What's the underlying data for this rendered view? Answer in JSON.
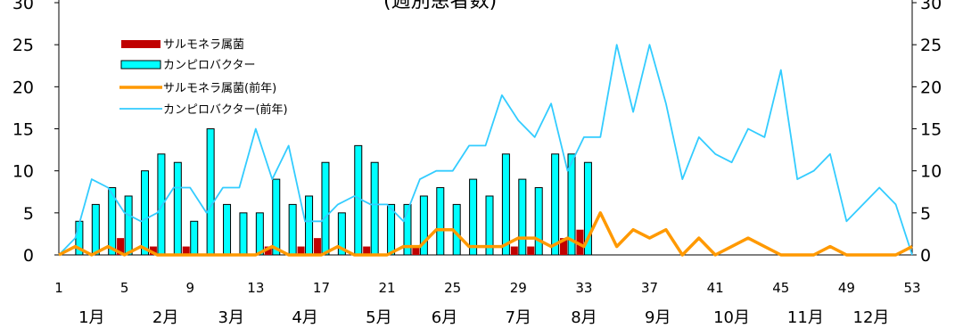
{
  "chart_data": {
    "type": "bar",
    "title": "カンピロバクター(週別患者数)",
    "title_visible_part": "(週別患者数)",
    "ylim": [
      0,
      30
    ],
    "y_ticks": [
      0,
      5,
      10,
      15,
      20,
      25,
      30
    ],
    "x_range": [
      1,
      53
    ],
    "week_ticks": [
      1,
      5,
      9,
      13,
      17,
      21,
      25,
      29,
      33,
      37,
      41,
      45,
      49,
      53
    ],
    "month_labels": [
      "1月",
      "2月",
      "3月",
      "4月",
      "5月",
      "6月",
      "7月",
      "8月",
      "9月",
      "10月",
      "11月",
      "12月"
    ],
    "month_label_weeks": [
      3,
      7.5,
      11.5,
      16,
      20.5,
      24.5,
      29,
      33,
      37.5,
      42,
      46.5,
      50.5
    ],
    "series": [
      {
        "name": "サルモネラ属菌",
        "kind": "bar",
        "color": "#c00000",
        "x": [
          5,
          7,
          9,
          14,
          16,
          17,
          20,
          23,
          29,
          30,
          32,
          33
        ],
        "values": [
          2,
          1,
          1,
          1,
          1,
          2,
          1,
          1,
          1,
          1,
          2,
          3
        ]
      },
      {
        "name": "カンピロバクター",
        "kind": "bar",
        "color": "#00ffff",
        "x": [
          2,
          3,
          4,
          5,
          6,
          7,
          8,
          9,
          10,
          11,
          12,
          13,
          14,
          15,
          16,
          17,
          18,
          19,
          20,
          21,
          22,
          23,
          24,
          25,
          26,
          27,
          28,
          29,
          30,
          31,
          32,
          33
        ],
        "values": [
          4,
          6,
          8,
          7,
          10,
          12,
          11,
          4,
          15,
          6,
          5,
          5,
          9,
          6,
          7,
          11,
          5,
          13,
          11,
          6,
          6,
          7,
          8,
          6,
          9,
          7,
          12,
          9,
          8,
          12,
          12,
          11
        ]
      },
      {
        "name": "サルモネラ属菌(前年)",
        "kind": "line",
        "color": "#ff9900",
        "x": [
          1,
          2,
          3,
          4,
          5,
          6,
          7,
          8,
          9,
          10,
          11,
          12,
          13,
          14,
          15,
          16,
          17,
          18,
          19,
          20,
          21,
          22,
          23,
          24,
          25,
          26,
          27,
          28,
          29,
          30,
          31,
          32,
          33,
          34,
          35,
          36,
          37,
          38,
          39,
          40,
          41,
          42,
          43,
          44,
          45,
          46,
          47,
          48,
          49,
          50,
          51,
          52,
          53
        ],
        "values": [
          0,
          1,
          0,
          1,
          0,
          1,
          0,
          0,
          0,
          0,
          0,
          0,
          0,
          1,
          0,
          0,
          0,
          1,
          0,
          0,
          0,
          1,
          1,
          3,
          3,
          1,
          1,
          1,
          2,
          2,
          1,
          2,
          1,
          5,
          1,
          3,
          2,
          3,
          0,
          2,
          0,
          1,
          2,
          1,
          0,
          0,
          0,
          1,
          0,
          0,
          0,
          0,
          1
        ]
      },
      {
        "name": "カンピロバクター(前年)",
        "kind": "line",
        "color": "#33ccff",
        "x": [
          1,
          2,
          3,
          4,
          5,
          6,
          7,
          8,
          9,
          10,
          11,
          12,
          13,
          14,
          15,
          16,
          17,
          18,
          19,
          20,
          21,
          22,
          23,
          24,
          25,
          26,
          27,
          28,
          29,
          30,
          31,
          32,
          33,
          34,
          35,
          36,
          37,
          38,
          39,
          40,
          41,
          42,
          43,
          44,
          45,
          46,
          47,
          48,
          49,
          50,
          51,
          52,
          53
        ],
        "values": [
          0,
          2,
          9,
          8,
          5,
          4,
          5,
          8,
          8,
          5,
          8,
          8,
          15,
          9,
          13,
          4,
          4,
          6,
          7,
          6,
          6,
          4,
          9,
          10,
          10,
          13,
          13,
          19,
          16,
          14,
          18,
          10,
          14,
          14,
          25,
          17,
          25,
          18,
          9,
          14,
          12,
          11,
          15,
          14,
          22,
          9,
          10,
          12,
          4,
          6,
          8,
          6,
          0
        ]
      }
    ],
    "legend_position": "top-left",
    "grid": false
  }
}
